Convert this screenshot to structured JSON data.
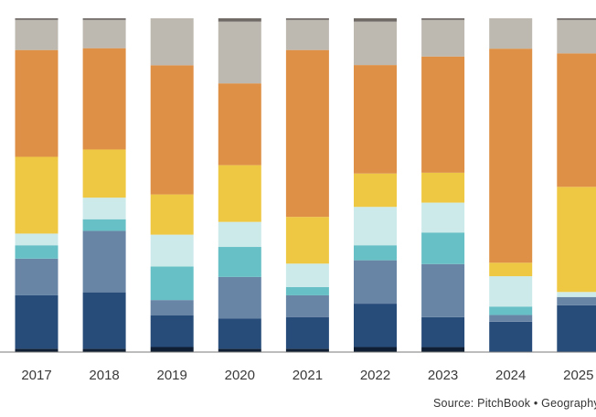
{
  "chart_data": {
    "type": "bar",
    "stacked": true,
    "normalized_to": 100,
    "categories": [
      "2017",
      "2018",
      "2019",
      "2020",
      "2021",
      "2022",
      "2023",
      "2024",
      "2025"
    ],
    "series": [
      {
        "color": "#0f1e33",
        "values": [
          1,
          1,
          1.5,
          1,
          1,
          1.5,
          1.5,
          0,
          0
        ]
      },
      {
        "color": "#284c7a",
        "values": [
          16,
          17,
          9.5,
          9,
          9.5,
          13,
          9,
          9,
          14
        ]
      },
      {
        "color": "#6885a6",
        "values": [
          11,
          18.5,
          4.5,
          12.5,
          6.5,
          13,
          16,
          2,
          2.5
        ]
      },
      {
        "color": "#67c0c6",
        "values": [
          4,
          3.5,
          10,
          9,
          2.5,
          4.5,
          9.5,
          2.5,
          0
        ]
      },
      {
        "color": "#cdeaeb",
        "values": [
          3.5,
          6.5,
          9.5,
          7.5,
          7,
          11.5,
          9,
          9,
          1.5
        ]
      },
      {
        "color": "#efc843",
        "values": [
          23,
          14.5,
          12,
          17,
          14,
          10,
          9,
          4,
          31.5
        ]
      },
      {
        "color": "#de9047",
        "values": [
          32,
          30.5,
          38.5,
          24.5,
          50,
          32.5,
          35,
          63.5,
          40
        ]
      },
      {
        "color": "#bdb8b0",
        "values": [
          9,
          8.5,
          14,
          18.5,
          9,
          13,
          11,
          9,
          10
        ]
      },
      {
        "color": "#706b67",
        "values": [
          0.5,
          0.5,
          0,
          1,
          0.5,
          1,
          0.5,
          0,
          0.5
        ]
      }
    ],
    "ylim": [
      0,
      100
    ],
    "grid": false,
    "legend": "none",
    "source": "Source: PitchBook  •  Geography"
  }
}
